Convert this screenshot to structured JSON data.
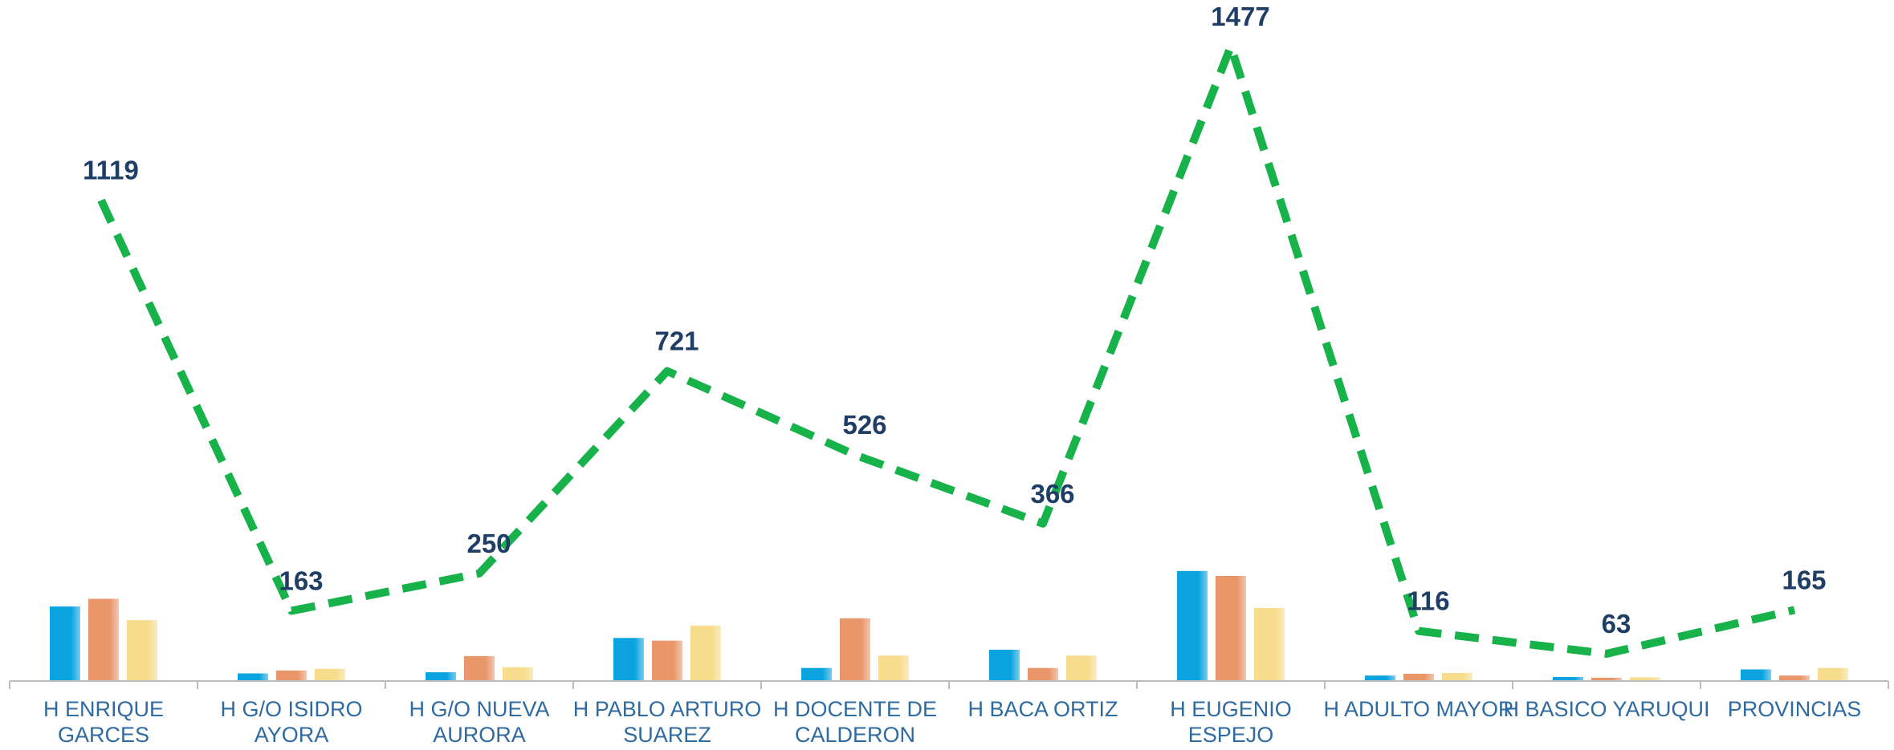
{
  "chart_data": {
    "type": "bar",
    "categories": [
      [
        "H ENRIQUE",
        "GARCES"
      ],
      [
        "H G/O ISIDRO",
        "AYORA"
      ],
      [
        "H G/O NUEVA",
        "AURORA"
      ],
      [
        "H PABLO ARTURO",
        "SUAREZ"
      ],
      [
        "H DOCENTE DE",
        "CALDERON"
      ],
      [
        "H BACA ORTIZ"
      ],
      [
        "H EUGENIO",
        "ESPEJO"
      ],
      [
        "H ADULTO MAYOR"
      ],
      [
        "H BASICO YARUQUI"
      ],
      [
        "PROVINCIAS"
      ]
    ],
    "series": [
      {
        "color": "#0aa3e0",
        "values": [
          410,
          42,
          48,
          237,
          72,
          172,
          605,
          30,
          22,
          64
        ]
      },
      {
        "color": "#e8966a",
        "values": [
          452,
          58,
          137,
          222,
          345,
          72,
          578,
          40,
          18,
          30
        ]
      },
      {
        "color": "#f6dc8c",
        "values": [
          335,
          67,
          76,
          305,
          140,
          140,
          402,
          44,
          20,
          72
        ]
      }
    ],
    "line": {
      "color": "#17b24a",
      "values": [
        1119,
        163,
        250,
        721,
        526,
        366,
        1477,
        116,
        63,
        165
      ],
      "labels": [
        "1119",
        "163",
        "250",
        "721",
        "526",
        "366",
        "1477",
        "116",
        "63",
        "165"
      ]
    },
    "title": "",
    "xlabel": "",
    "ylabel": "",
    "grid": false,
    "legend": "none"
  }
}
